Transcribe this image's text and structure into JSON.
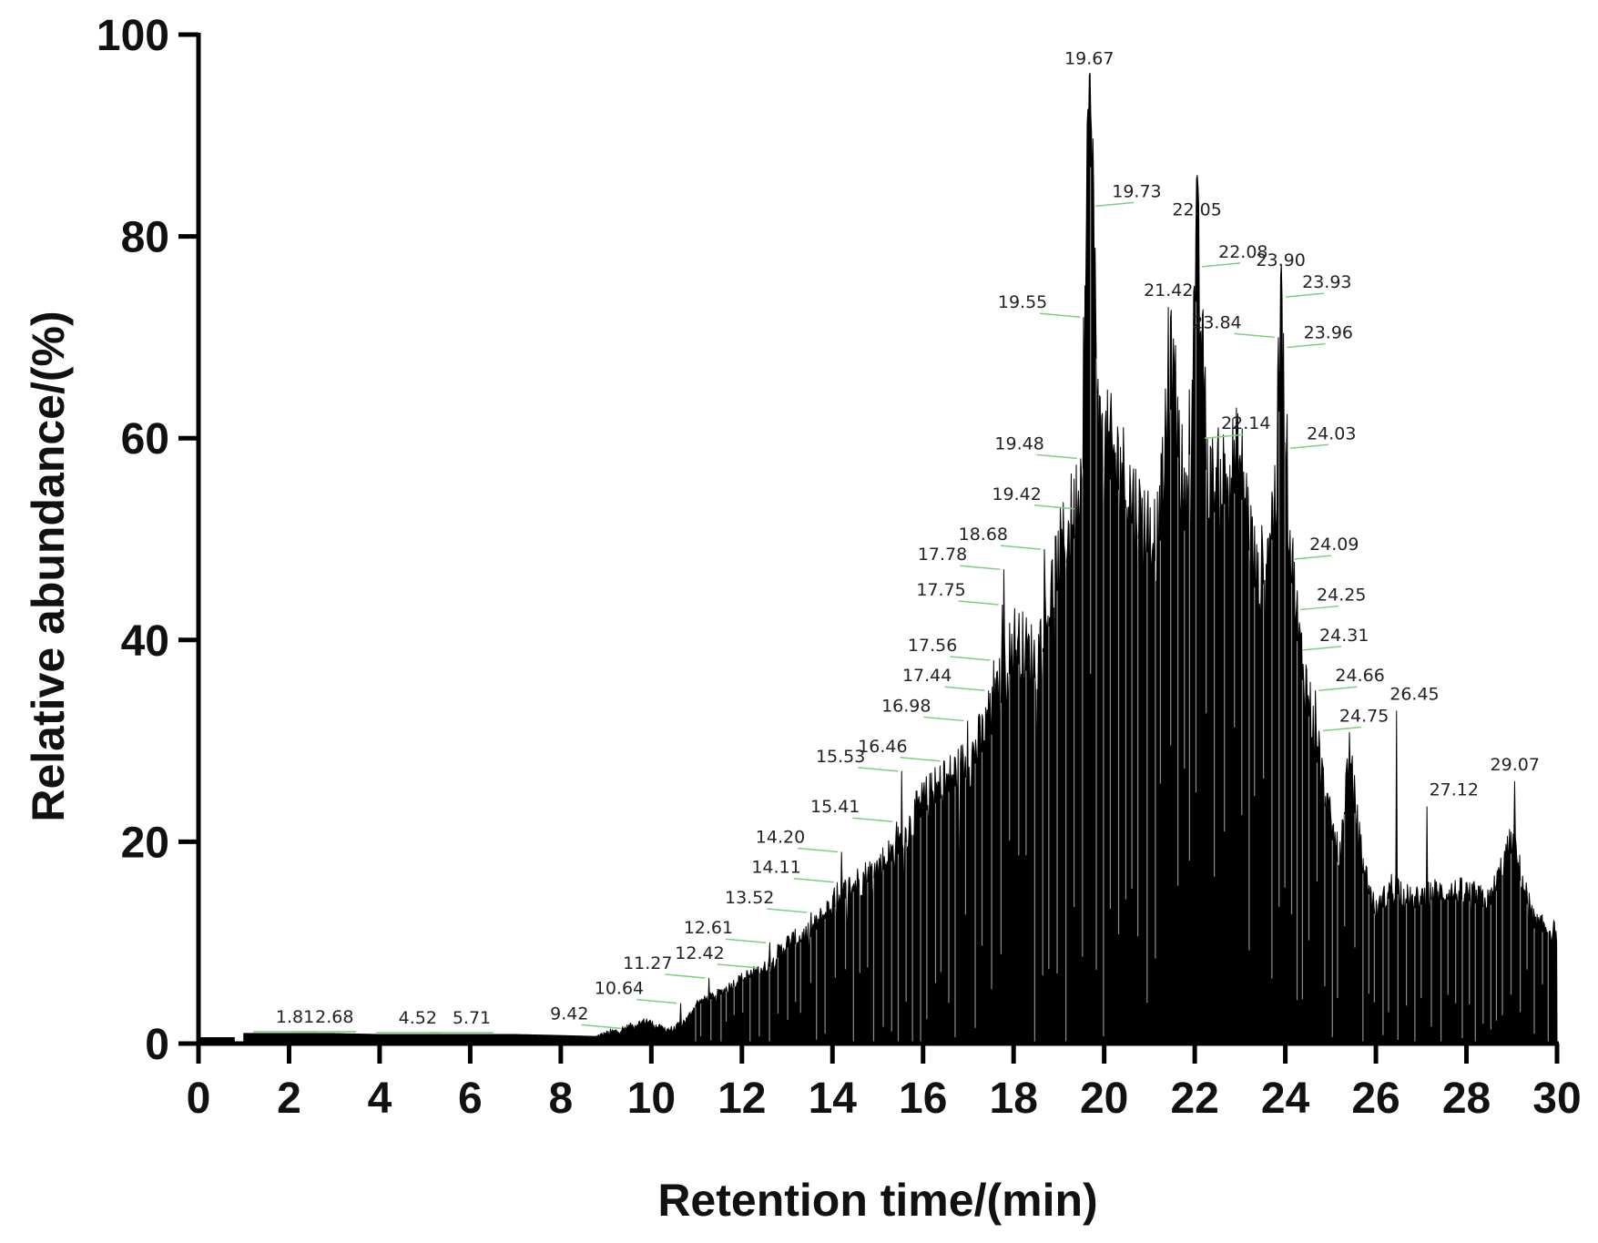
{
  "chart_data": {
    "type": "area",
    "title": "",
    "xlabel": "Retention time/(min)",
    "ylabel": "Relative abundance/(%)",
    "xlim": [
      0,
      30
    ],
    "ylim": [
      0,
      100
    ],
    "xticks": [
      0,
      2,
      4,
      6,
      8,
      10,
      12,
      14,
      16,
      18,
      20,
      22,
      24,
      26,
      28,
      30
    ],
    "yticks": [
      0,
      20,
      40,
      60,
      80,
      100
    ],
    "grid": false,
    "legend": "none",
    "colors": {
      "trace": "#000000",
      "leader": "#7ccf7c",
      "axis": "#000000"
    },
    "envelope": {
      "x": [
        0.0,
        1.0,
        2.0,
        3.0,
        4.0,
        5.0,
        6.0,
        7.0,
        8.0,
        8.8,
        9.2,
        9.6,
        9.9,
        10.2,
        10.5,
        10.8,
        11.0,
        11.5,
        12.0,
        12.5,
        13.0,
        13.5,
        14.0,
        14.5,
        15.0,
        15.5,
        16.0,
        16.5,
        17.0,
        17.5,
        18.0,
        18.5,
        19.0,
        19.5,
        19.67,
        19.9,
        20.3,
        20.8,
        21.2,
        21.5,
        21.8,
        22.05,
        22.3,
        22.6,
        23.0,
        23.4,
        23.8,
        23.9,
        24.1,
        24.3,
        24.6,
        24.9,
        25.2,
        25.4,
        25.7,
        26.0,
        26.4,
        26.8,
        27.2,
        27.6,
        28.0,
        28.5,
        29.0,
        29.5,
        30.0
      ],
      "y": [
        0.0,
        1.0,
        1.0,
        1.0,
        0.9,
        0.9,
        0.9,
        0.9,
        0.8,
        0.7,
        1.2,
        1.8,
        2.3,
        1.5,
        1.4,
        2.5,
        4.0,
        5.0,
        6.5,
        7.5,
        10.0,
        11.0,
        14.0,
        16.0,
        17.5,
        20.0,
        24.0,
        26.0,
        28.0,
        32.0,
        40.0,
        38.0,
        48.0,
        55.0,
        96.0,
        60.0,
        58.0,
        52.0,
        50.0,
        68.0,
        52.0,
        80.0,
        55.0,
        56.0,
        58.0,
        45.0,
        55.0,
        73.0,
        50.0,
        40.0,
        32.0,
        24.0,
        18.0,
        29.0,
        18.0,
        13.0,
        16.0,
        14.0,
        15.0,
        15.0,
        15.0,
        14.0,
        20.0,
        12.0,
        11.0
      ]
    },
    "peaks": [
      {
        "label": "1.81",
        "x": 1.81,
        "y": 1.0
      },
      {
        "label": "2.68",
        "x": 2.68,
        "y": 1.0
      },
      {
        "label": "4.52",
        "x": 4.52,
        "y": 0.9
      },
      {
        "label": "5.71",
        "x": 5.71,
        "y": 0.9
      },
      {
        "label": "9.42",
        "x": 9.42,
        "y": 1.5
      },
      {
        "label": "10.64",
        "x": 10.64,
        "y": 4.0
      },
      {
        "label": "11.27",
        "x": 11.27,
        "y": 6.5
      },
      {
        "label": "12.42",
        "x": 12.42,
        "y": 7.5
      },
      {
        "label": "12.61",
        "x": 12.61,
        "y": 10.0
      },
      {
        "label": "13.52",
        "x": 13.52,
        "y": 13.0
      },
      {
        "label": "14.11",
        "x": 14.11,
        "y": 16.0
      },
      {
        "label": "14.20",
        "x": 14.2,
        "y": 19.0
      },
      {
        "label": "15.41",
        "x": 15.41,
        "y": 22.0
      },
      {
        "label": "15.53",
        "x": 15.53,
        "y": 27.0
      },
      {
        "label": "16.46",
        "x": 16.46,
        "y": 28.0
      },
      {
        "label": "16.98",
        "x": 16.98,
        "y": 32.0
      },
      {
        "label": "17.44",
        "x": 17.44,
        "y": 35.0
      },
      {
        "label": "17.56",
        "x": 17.56,
        "y": 38.0
      },
      {
        "label": "17.75",
        "x": 17.75,
        "y": 43.5
      },
      {
        "label": "17.78",
        "x": 17.78,
        "y": 47.0
      },
      {
        "label": "18.68",
        "x": 18.68,
        "y": 49.0
      },
      {
        "label": "19.42",
        "x": 19.42,
        "y": 53.0
      },
      {
        "label": "19.48",
        "x": 19.48,
        "y": 58.0
      },
      {
        "label": "19.55",
        "x": 19.55,
        "y": 72.0
      },
      {
        "label": "19.67",
        "x": 19.67,
        "y": 96.0
      },
      {
        "label": "19.73",
        "x": 19.73,
        "y": 83.0
      },
      {
        "label": "21.42",
        "x": 21.42,
        "y": 73.0
      },
      {
        "label": "22.05",
        "x": 22.05,
        "y": 81.0
      },
      {
        "label": "22.08",
        "x": 22.08,
        "y": 77.0
      },
      {
        "label": "22.14",
        "x": 22.14,
        "y": 60.0
      },
      {
        "label": "23.84",
        "x": 23.84,
        "y": 70.0
      },
      {
        "label": "23.90",
        "x": 23.9,
        "y": 76.0
      },
      {
        "label": "23.93",
        "x": 23.93,
        "y": 74.0
      },
      {
        "label": "23.96",
        "x": 23.96,
        "y": 69.0
      },
      {
        "label": "24.03",
        "x": 24.03,
        "y": 59.0
      },
      {
        "label": "24.09",
        "x": 24.09,
        "y": 48.0
      },
      {
        "label": "24.25",
        "x": 24.25,
        "y": 43.0
      },
      {
        "label": "24.31",
        "x": 24.31,
        "y": 39.0
      },
      {
        "label": "24.66",
        "x": 24.66,
        "y": 35.0
      },
      {
        "label": "24.75",
        "x": 24.75,
        "y": 31.0
      },
      {
        "label": "26.45",
        "x": 26.45,
        "y": 33.0
      },
      {
        "label": "27.12",
        "x": 27.12,
        "y": 23.5
      },
      {
        "label": "29.07",
        "x": 29.07,
        "y": 26.0
      }
    ]
  }
}
